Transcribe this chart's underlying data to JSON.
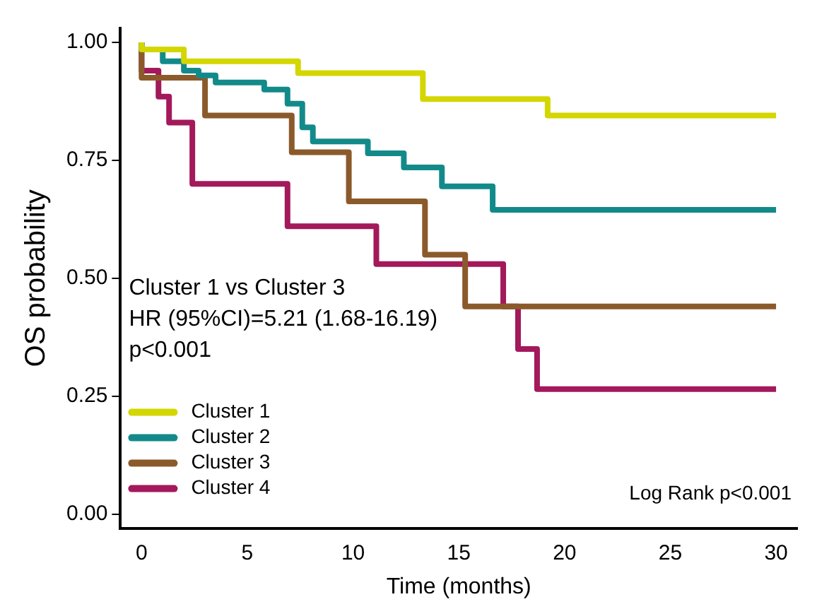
{
  "chart_data": {
    "type": "step",
    "xlabel": "Time (months)",
    "ylabel": "OS probability",
    "xlim": [
      -1,
      31
    ],
    "xticks": [
      0,
      5,
      10,
      15,
      20,
      25,
      30
    ],
    "ylim": [
      -0.03,
      1.03
    ],
    "yticks": [
      {
        "value": 0,
        "label": "0.00"
      },
      {
        "value": 0.25,
        "label": "0.25"
      },
      {
        "value": 0.5,
        "label": "0.50"
      },
      {
        "value": 0.75,
        "label": "0.75"
      },
      {
        "value": 1,
        "label": "1.00"
      }
    ],
    "grid": false,
    "legend": "bottom left",
    "marker": "none",
    "line_style": "solid",
    "annotations": [
      "Cluster 1 vs Cluster 3",
      "HR (95%CI)=5.21 (1.68-16.19)",
      "p<0.001",
      "Log Rank p<0.001"
    ],
    "series": [
      {
        "name": "Cluster 1",
        "color": "#d4d600",
        "x": [
          0,
          2,
          7.4,
          13.3,
          19.2,
          21.5,
          30
        ],
        "values": [
          1,
          0.985,
          0.96,
          0.935,
          0.88,
          0.845,
          0.845
        ]
      },
      {
        "name": "Cluster 2",
        "color": "#138a8a",
        "x": [
          0,
          1,
          2,
          2.7,
          3.5,
          5.8,
          6.9,
          7.6,
          8.1,
          10.7,
          12.4,
          14.2,
          16.6,
          22.7,
          30
        ],
        "values": [
          1,
          0.985,
          0.96,
          0.94,
          0.93,
          0.915,
          0.9,
          0.87,
          0.82,
          0.79,
          0.765,
          0.735,
          0.695,
          0.645,
          0.645
        ]
      },
      {
        "name": "Cluster 3",
        "color": "#8b5a2b",
        "x": [
          0,
          3,
          7.1,
          9.8,
          13.4,
          15.3,
          16.8,
          30
        ],
        "values": [
          1,
          0.925,
          0.845,
          0.767,
          0.663,
          0.55,
          0.44,
          0.44
        ]
      },
      {
        "name": "Cluster 4",
        "color": "#a3195b",
        "x": [
          0,
          0.8,
          1.3,
          2.4,
          6.9,
          11.1,
          17.1,
          17.8,
          18.7,
          21.8,
          30
        ],
        "values": [
          1,
          0.94,
          0.885,
          0.83,
          0.7,
          0.61,
          0.53,
          0.44,
          0.35,
          0.265,
          0.265
        ]
      }
    ]
  }
}
